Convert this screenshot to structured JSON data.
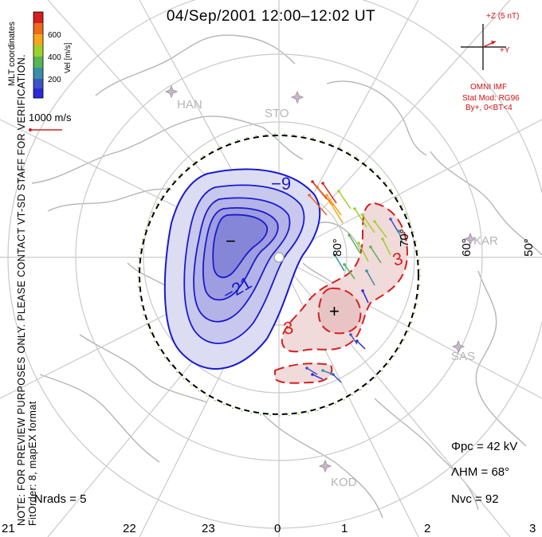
{
  "title": "04/Sep/2001  12:00–12:02  UT",
  "colorbar": {
    "ticks": [
      "600",
      "400",
      "200"
    ],
    "unit": "Vel [m/s]",
    "colors": [
      "#d42020",
      "#ee6a1c",
      "#f6a51c",
      "#9fd12b",
      "#56b556",
      "#3a8fa6",
      "#3b55c6",
      "#2a2ad8"
    ],
    "coordinates": "MLT coordinates"
  },
  "scale": {
    "label": "1000 m/s"
  },
  "note_line1": "NOTE: FOR PREVIEW PURPOSES ONLY. PLEASE CONTACT VT-SD STAFF FOR VERIFICATION.",
  "note_line2": "FitOrder: 8, mapEX format",
  "imf": {
    "z_label": "+Z (5 nT)",
    "y_label": "+Y",
    "source": "OMNI IMF",
    "model": "Stat Mod: RG96",
    "condition": "By+, 0<BT<4"
  },
  "stations": [
    "HAN",
    "STO",
    "KAR",
    "SAS",
    "KOD"
  ],
  "latitudes": [
    "80°",
    "70°",
    "60°",
    "50°"
  ],
  "contours": {
    "neg1": "−9",
    "neg2": "−21",
    "pos1": "3",
    "pos2": "3",
    "min_mark": "−",
    "max_mark": "+"
  },
  "stats": {
    "phi_pc": "Φpc = 42 kV",
    "lambda_hm": "ΛHM = 68°",
    "n_vc": "Nvc = 92",
    "n_rads": "Nrads = 5"
  },
  "mlt_labels": [
    "21",
    "22",
    "23",
    "0",
    "1",
    "2",
    "3"
  ],
  "colors": {
    "negative": "#1a1ad0",
    "positive": "#d42020",
    "hmb": "#000000",
    "grid": "#c9c9c9",
    "coast": "#b5b5b5"
  }
}
